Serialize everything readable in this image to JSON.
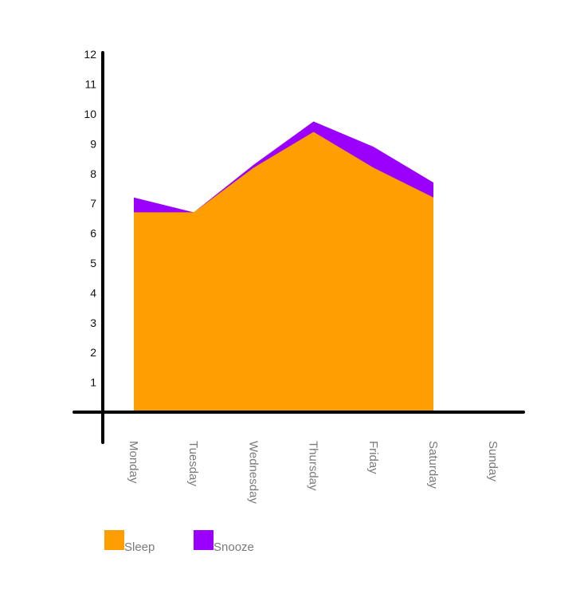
{
  "chart_data": {
    "type": "area",
    "stacked": true,
    "categories": [
      "Monday",
      "Tuesday",
      "Wednesday",
      "Thursday",
      "Friday",
      "Saturday",
      "Sunday"
    ],
    "series": [
      {
        "name": "Sleep",
        "values": [
          6.7,
          6.7,
          8.2,
          9.4,
          8.2,
          7.2,
          null
        ],
        "color": "#ff9e00"
      },
      {
        "name": "Snooze",
        "values": [
          0.5,
          0.0,
          0.1,
          0.35,
          0.7,
          0.5,
          null
        ],
        "color": "#9b00ff"
      }
    ],
    "y_ticks": [
      1,
      2,
      3,
      4,
      5,
      6,
      7,
      8,
      9,
      10,
      11,
      12
    ],
    "ylim": [
      0,
      12
    ],
    "grid": false,
    "legend_position": "bottom-left",
    "title": "",
    "xlabel": "",
    "ylabel": ""
  }
}
